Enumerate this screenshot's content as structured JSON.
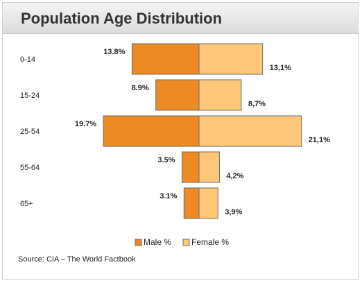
{
  "chart_data": {
    "type": "bar",
    "orientation": "horizontal",
    "title": "Population Age Distribution",
    "categories": [
      "0-14",
      "15-24",
      "25-54",
      "55-64",
      "65+"
    ],
    "series": [
      {
        "name": "Male %",
        "values": [
          13.8,
          8.9,
          19.7,
          3.5,
          3.1
        ],
        "labels": [
          "13.8%",
          "8.9%",
          "19.7%",
          "3.5%",
          "3.1%"
        ],
        "color": "#ec8a23"
      },
      {
        "name": "Female %",
        "values": [
          13.1,
          8.7,
          21.1,
          4.2,
          3.9
        ],
        "labels": [
          "13,1%",
          "8,7%",
          "21,1%",
          "4,2%",
          "3,9%"
        ],
        "color": "#fdc77a"
      }
    ],
    "legend_position": "bottom",
    "grid": false
  },
  "footer": {
    "source": "Source: CIA – The World Factbook"
  }
}
